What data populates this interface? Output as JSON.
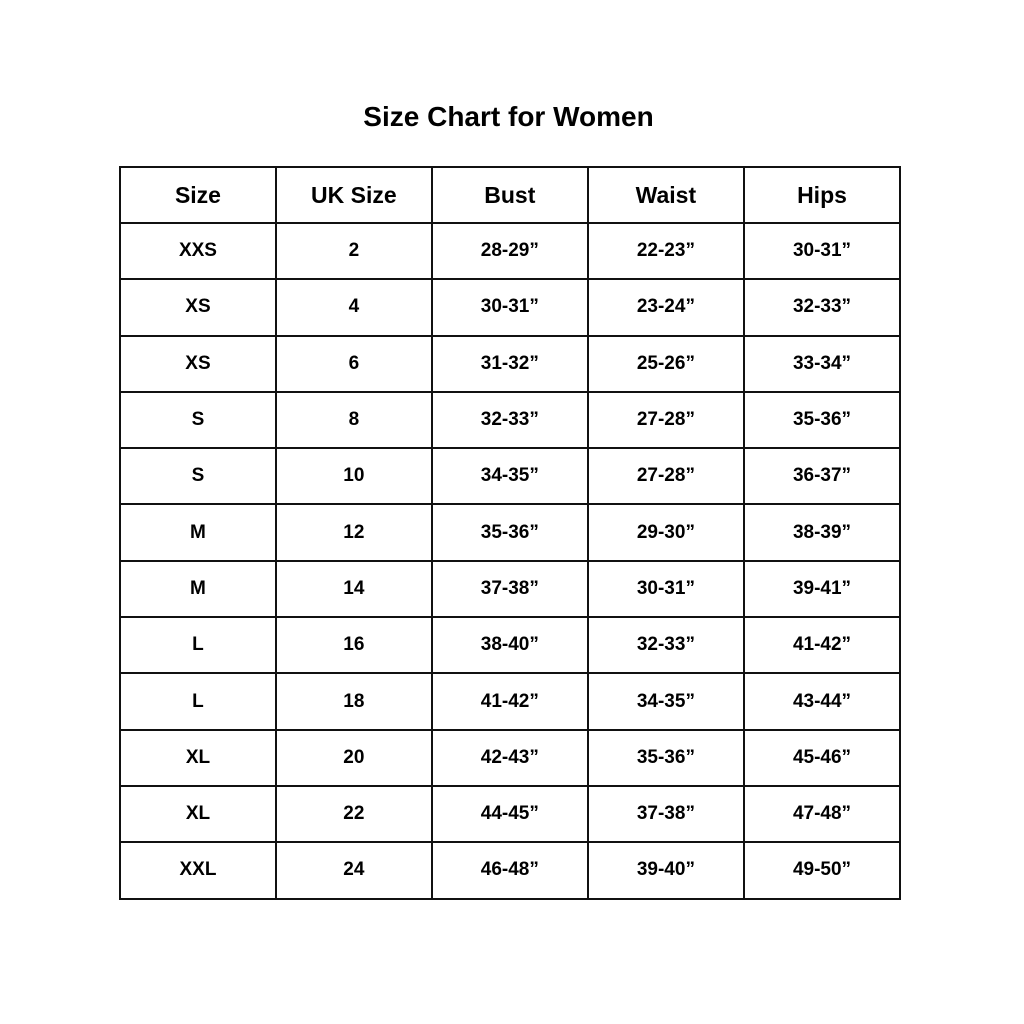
{
  "title": "Size Chart for Women",
  "table": {
    "headers": [
      "Size",
      "UK Size",
      "Bust",
      "Waist",
      "Hips"
    ],
    "rows": [
      [
        "XXS",
        "2",
        "28-29”",
        "22-23”",
        "30-31”"
      ],
      [
        "XS",
        "4",
        "30-31”",
        "23-24”",
        "32-33”"
      ],
      [
        "XS",
        "6",
        "31-32”",
        "25-26”",
        "33-34”"
      ],
      [
        "S",
        "8",
        "32-33”",
        "27-28”",
        "35-36”"
      ],
      [
        "S",
        "10",
        "34-35”",
        "27-28”",
        "36-37”"
      ],
      [
        "M",
        "12",
        "35-36”",
        "29-30”",
        "38-39”"
      ],
      [
        "M",
        "14",
        "37-38”",
        "30-31”",
        "39-41”"
      ],
      [
        "L",
        "16",
        "38-40”",
        "32-33”",
        "41-42”"
      ],
      [
        "L",
        "18",
        "41-42”",
        "34-35”",
        "43-44”"
      ],
      [
        "XL",
        "20",
        "42-43”",
        "35-36”",
        "45-46”"
      ],
      [
        "XL",
        "22",
        "44-45”",
        "37-38”",
        "47-48”"
      ],
      [
        "XXL",
        "24",
        "46-48”",
        "39-40”",
        "49-50”"
      ]
    ]
  }
}
